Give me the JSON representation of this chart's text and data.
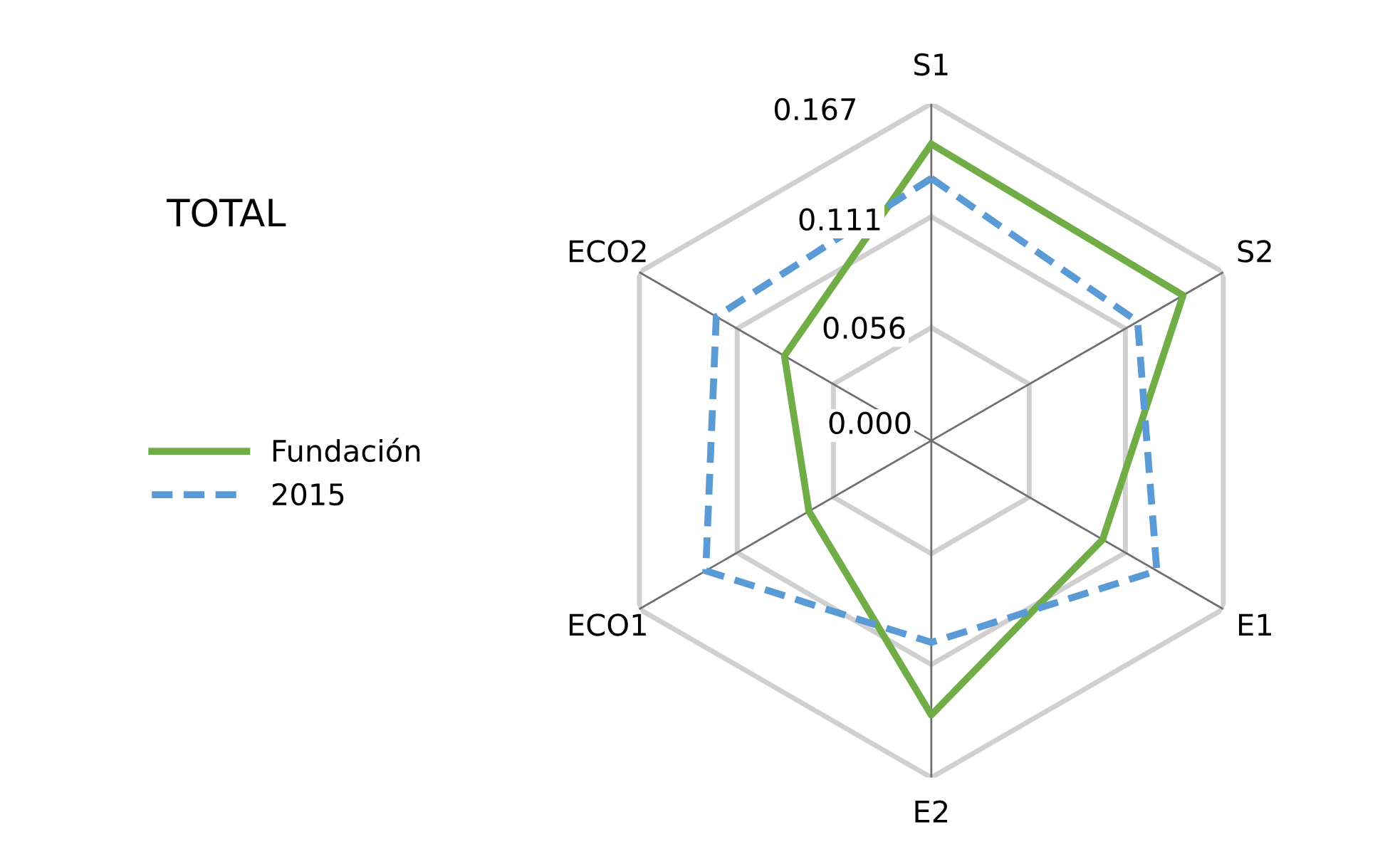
{
  "chart_data": {
    "type": "radar",
    "title": "TOTAL",
    "categories": [
      "S1",
      "S2",
      "E1",
      "E2",
      "ECO1",
      "ECO2"
    ],
    "series": [
      {
        "name": "Fundación",
        "color": "#70ad47",
        "values": [
          0.147,
          0.144,
          0.098,
          0.136,
          0.07,
          0.084
        ],
        "line_style": "solid"
      },
      {
        "name": "2015",
        "color": "#5b9bd5",
        "values": [
          0.13,
          0.118,
          0.129,
          0.1,
          0.129,
          0.123
        ],
        "line_style": "dashed"
      }
    ],
    "ylim": [
      0,
      0.167
    ],
    "yticks": [
      {
        "value": 0,
        "label": "0.000"
      },
      {
        "value": 0.056,
        "label": "0.056"
      },
      {
        "value": 0.111,
        "label": "0.111"
      },
      {
        "value": 0.167,
        "label": "0.167"
      }
    ],
    "grid": true,
    "legend": "left",
    "marker": "none"
  }
}
